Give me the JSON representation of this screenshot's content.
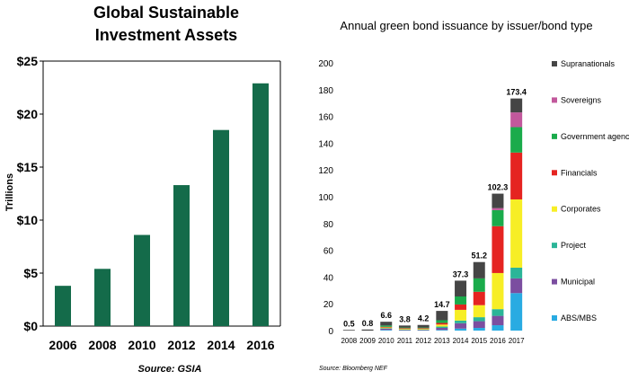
{
  "chart_data": [
    {
      "type": "bar",
      "title": "Global Sustainable Investment Assets",
      "title_lines": [
        "Global Sustainable",
        "Investment Assets"
      ],
      "ylabel": "Trillions",
      "xlabel": "",
      "categories": [
        "2006",
        "2008",
        "2010",
        "2012",
        "2014",
        "2016"
      ],
      "values": [
        3.8,
        5.4,
        8.6,
        13.3,
        18.5,
        22.9
      ],
      "ylim": [
        0,
        25
      ],
      "yticks": [
        "$0",
        "$5",
        "$10",
        "$15",
        "$20",
        "$25"
      ],
      "color": "#146b4a",
      "source": "Source: GSIA",
      "grid": false
    },
    {
      "type": "bar",
      "stacked": true,
      "title": "Annual green bond issuance by issuer/bond type",
      "categories": [
        "2008",
        "2009",
        "2010",
        "2011",
        "2012",
        "2013",
        "2014",
        "2015",
        "2016",
        "2017"
      ],
      "totals": [
        "0.5",
        "0.8",
        "6.6",
        "3.8",
        "4.2",
        "14.7",
        "37.3",
        "51.2",
        "102.3",
        "173.4"
      ],
      "ylim": [
        0,
        200
      ],
      "yticks": [
        "0",
        "20",
        "40",
        "60",
        "80",
        "100",
        "120",
        "140",
        "160",
        "180",
        "200"
      ],
      "legend_position": "right",
      "series": [
        {
          "name": "ABS/MBS",
          "color": "#29abe2",
          "values": [
            0,
            0,
            0.5,
            0,
            0,
            0.5,
            1.5,
            2,
            4,
            28
          ]
        },
        {
          "name": "Municipal",
          "color": "#7b4ea0",
          "values": [
            0,
            0,
            1,
            0.5,
            0.5,
            1.5,
            4,
            5,
            7,
            11
          ]
        },
        {
          "name": "Project",
          "color": "#2bb598",
          "values": [
            0,
            0,
            0.3,
            0.3,
            0.3,
            1,
            2,
            3,
            5,
            8
          ]
        },
        {
          "name": "Corporates",
          "color": "#f7ee26",
          "values": [
            0,
            0,
            0.5,
            0.5,
            0.5,
            1.5,
            8,
            9,
            27,
            51
          ]
        },
        {
          "name": "Financials",
          "color": "#e52421",
          "values": [
            0,
            0,
            0.5,
            0.5,
            0.5,
            1.2,
            4,
            10,
            35,
            35
          ]
        },
        {
          "name": "Government agencies",
          "color": "#1aab4b",
          "values": [
            0,
            0,
            1,
            0.5,
            0.5,
            2,
            6,
            10,
            12,
            19
          ]
        },
        {
          "name": "Sovereigns",
          "color": "#c2589c",
          "values": [
            0,
            0,
            0,
            0,
            0,
            0,
            0,
            0,
            1.5,
            11
          ]
        },
        {
          "name": "Supranationals",
          "color": "#454545",
          "values": [
            0.5,
            0.8,
            2.8,
            1.5,
            1.9,
            7,
            11.8,
            12.2,
            10.8,
            10.4
          ]
        }
      ],
      "source": "Source: Bloomberg NEF",
      "grid": false
    }
  ]
}
